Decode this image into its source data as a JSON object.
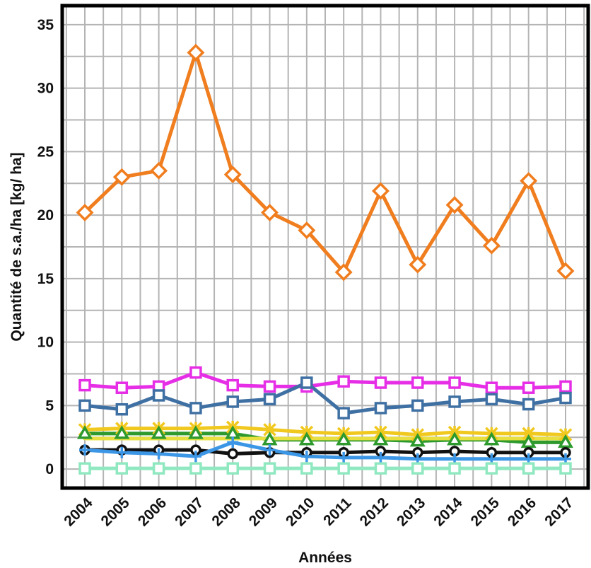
{
  "chart_data": {
    "type": "line",
    "title": "",
    "xlabel": "Années",
    "ylabel": "Quantité de s.a./ha [kg/ ha]",
    "categories": [
      "2004",
      "2005",
      "2006",
      "2007",
      "2008",
      "2009",
      "2010",
      "2011",
      "2012",
      "2013",
      "2014",
      "2015",
      "2016",
      "2017"
    ],
    "ylim": [
      -1.5,
      36.5
    ],
    "yticks": [
      0,
      5,
      10,
      15,
      20,
      25,
      30,
      35
    ],
    "grid": true,
    "legend": "none",
    "series": [
      {
        "color": "#f07d1e",
        "marker": "diamond",
        "values": [
          20.2,
          23.0,
          23.5,
          32.8,
          23.2,
          20.2,
          18.8,
          15.5,
          21.9,
          16.1,
          20.8,
          17.6,
          22.7,
          15.6
        ]
      },
      {
        "color": "#e62ee6",
        "marker": "square",
        "values": [
          6.6,
          6.4,
          6.5,
          7.6,
          6.6,
          6.5,
          6.5,
          6.9,
          6.8,
          6.8,
          6.8,
          6.4,
          6.4,
          6.5
        ]
      },
      {
        "color": "#3f70a3",
        "marker": "square",
        "values": [
          5.0,
          4.7,
          5.8,
          4.8,
          5.3,
          5.5,
          6.8,
          4.4,
          4.8,
          5.0,
          5.3,
          5.5,
          5.1,
          5.6
        ]
      },
      {
        "color": "#f0c81e",
        "marker": "star",
        "values": [
          3.1,
          3.2,
          3.2,
          3.2,
          3.3,
          3.1,
          2.9,
          2.8,
          2.9,
          2.7,
          2.9,
          2.8,
          2.8,
          2.7
        ]
      },
      {
        "color": "#2e9a2e",
        "marker": "triangle",
        "values": [
          2.8,
          2.8,
          2.8,
          2.8,
          2.8,
          2.3,
          2.3,
          2.3,
          2.3,
          2.2,
          2.3,
          2.3,
          2.1,
          2.1
        ]
      },
      {
        "color": "#e8e040",
        "marker": "none",
        "values": [
          2.4,
          2.4,
          2.4,
          2.4,
          2.4,
          2.4,
          2.4,
          2.4,
          2.4,
          2.4,
          2.4,
          2.4,
          2.4,
          2.4
        ]
      },
      {
        "color": "#111111",
        "marker": "circle",
        "values": [
          1.5,
          1.5,
          1.5,
          1.5,
          1.2,
          1.3,
          1.3,
          1.3,
          1.4,
          1.3,
          1.4,
          1.3,
          1.3,
          1.3
        ]
      },
      {
        "color": "#3c96e6",
        "marker": "plus",
        "values": [
          1.5,
          1.3,
          1.2,
          1.0,
          2.1,
          1.5,
          1.0,
          0.9,
          0.9,
          0.8,
          0.8,
          0.8,
          0.8,
          0.8
        ]
      },
      {
        "color": "#8fe8c0",
        "marker": "square",
        "values": [
          0.05,
          0.05,
          0.05,
          0.05,
          0.05,
          0.05,
          0.05,
          0.05,
          0.05,
          0.05,
          0.05,
          0.05,
          0.05,
          0.05
        ]
      }
    ]
  }
}
